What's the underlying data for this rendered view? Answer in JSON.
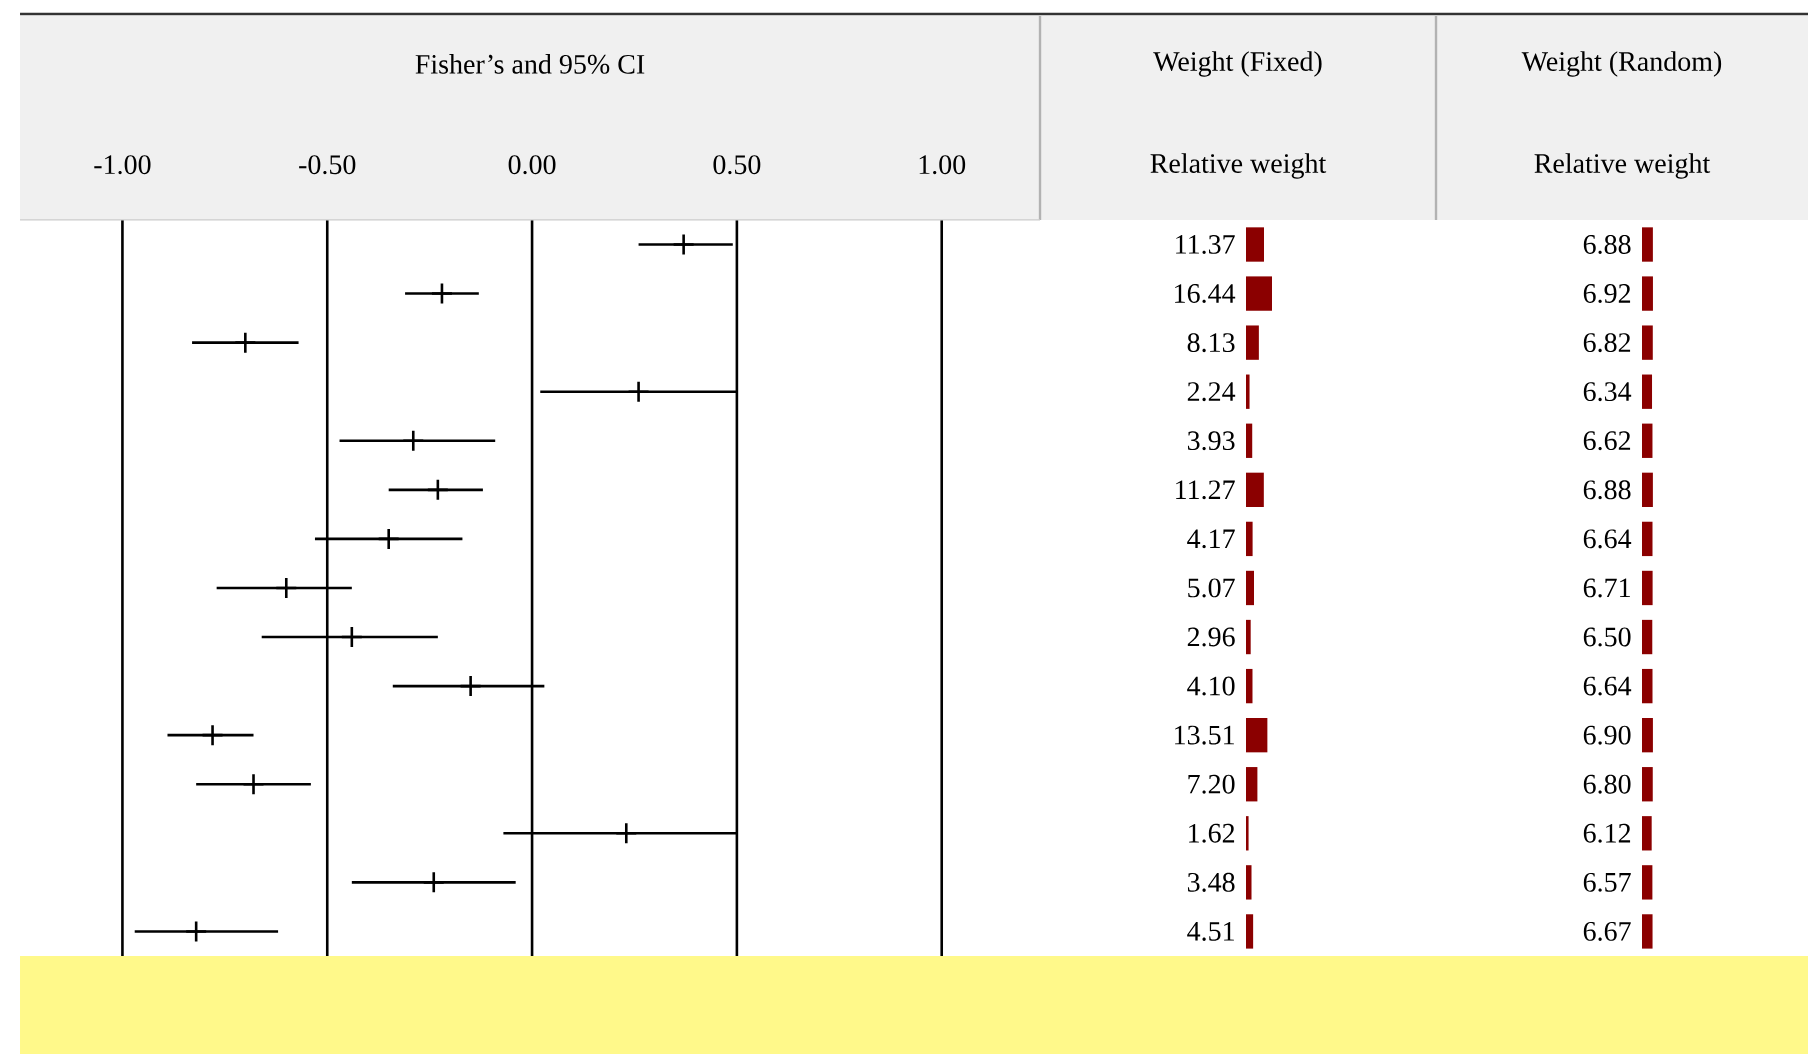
{
  "chart_data": [
    {
      "type": "scatter",
      "orientation": "horizontal",
      "xlabel": "Fisher’s and 95% CI",
      "categories": [
        null,
        null,
        null,
        null,
        null,
        null,
        null,
        null,
        null,
        null,
        null,
        null,
        null,
        null,
        null
      ],
      "values": [
        0.37,
        -0.22,
        -0.7,
        0.26,
        -0.29,
        -0.23,
        -0.35,
        -0.6,
        -0.44,
        -0.15,
        -0.78,
        -0.68,
        0.23,
        -0.24,
        -0.82
      ],
      "errors": [
        [
          0.26,
          0.49
        ],
        [
          -0.31,
          -0.13
        ],
        [
          -0.83,
          -0.57
        ],
        [
          0.02,
          0.5
        ],
        [
          -0.47,
          -0.09
        ],
        [
          -0.35,
          -0.12
        ],
        [
          -0.53,
          -0.17
        ],
        [
          -0.77,
          -0.44
        ],
        [
          -0.66,
          -0.23
        ],
        [
          -0.34,
          0.03
        ],
        [
          -0.89,
          -0.68
        ],
        [
          -0.82,
          -0.54
        ],
        [
          -0.07,
          0.5
        ],
        [
          -0.44,
          -0.04
        ],
        [
          -0.97,
          -0.62
        ]
      ],
      "color": "#000000",
      "marker": "cross",
      "grid": "x",
      "tick_labels": "x",
      "xlim": [
        -1.25,
        1.24
      ],
      "xticks": [
        {
          "value": -1,
          "label": "-1.00"
        },
        {
          "value": -0.5,
          "label": "-0.50"
        },
        {
          "value": 0,
          "label": "0.00"
        },
        {
          "value": 0.5,
          "label": "0.50"
        },
        {
          "value": 1,
          "label": "1.00"
        }
      ]
    },
    {
      "type": "bar",
      "orientation": "horizontal",
      "title": "Weight (Fixed)",
      "xlabel": "Relative weight",
      "categories": [
        null,
        null,
        null,
        null,
        null,
        null,
        null,
        null,
        null,
        null,
        null,
        null,
        null,
        null,
        null
      ],
      "values": [
        11.37,
        16.44,
        8.13,
        2.24,
        3.93,
        11.27,
        4.17,
        5.07,
        2.96,
        4.1,
        13.51,
        7.2,
        1.62,
        3.48,
        4.51
      ],
      "value_labels": [
        "11.37",
        "16.44",
        "8.13",
        "2.24",
        "3.93",
        "11.27",
        "4.17",
        "5.07",
        "2.96",
        "4.10",
        "13.51",
        "7.20",
        "1.62",
        "3.48",
        "4.51"
      ],
      "color": "#8b0000",
      "tick_labels": false
    },
    {
      "type": "bar",
      "orientation": "horizontal",
      "title": "Weight (Random)",
      "xlabel": "Relative weight",
      "categories": [
        null,
        null,
        null,
        null,
        null,
        null,
        null,
        null,
        null,
        null,
        null,
        null,
        null,
        null,
        null
      ],
      "values": [
        6.88,
        6.92,
        6.82,
        6.34,
        6.62,
        6.88,
        6.64,
        6.71,
        6.5,
        6.64,
        6.9,
        6.8,
        6.12,
        6.57,
        6.67
      ],
      "value_labels": [
        "6.88",
        "6.92",
        "6.82",
        "6.34",
        "6.62",
        "6.88",
        "6.64",
        "6.71",
        "6.50",
        "6.64",
        "6.90",
        "6.80",
        "6.12",
        "6.57",
        "6.67"
      ],
      "color": "#8b0000",
      "tick_labels": false
    }
  ]
}
